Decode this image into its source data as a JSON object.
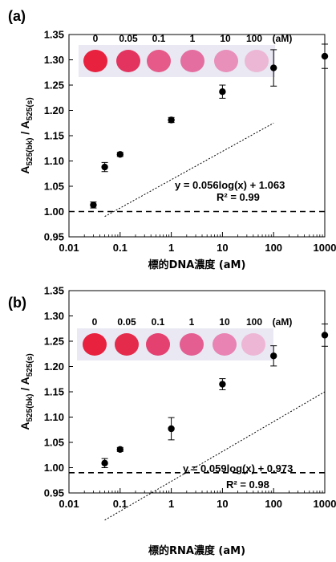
{
  "panels": [
    {
      "label": "(a)",
      "ylabel_main": "A",
      "ylabel_sub1": "525(bk)",
      "ylabel_sep": " / A",
      "ylabel_sub2": "525(s)",
      "xlabel": "標的DNA濃度 (aM)",
      "strip_labels": [
        "0",
        "0.05",
        "0.1",
        "1",
        "10",
        "100",
        "(aM)"
      ],
      "equation": "y = 0.056log(x) + 1.063",
      "r2": "R² = 0.99"
    },
    {
      "label": "(b)",
      "ylabel_main": "A",
      "ylabel_sub1": "525(bk)",
      "ylabel_sep": " / A",
      "ylabel_sub2": "525(s)",
      "xlabel": "標的RNA濃度 (aM)",
      "strip_labels": [
        "0",
        "0.05",
        "0.1",
        "1",
        "10",
        "100",
        "(aM)"
      ],
      "equation": "y = 0.059log(x) + 0.973",
      "r2": "R² = 0.98"
    }
  ],
  "chart_data": [
    {
      "type": "scatter",
      "xscale": "log",
      "xlim": [
        0.01,
        1000
      ],
      "ylim": [
        0.95,
        1.35
      ],
      "xticks": [
        0.01,
        0.1,
        1,
        10,
        100,
        1000
      ],
      "xtick_labels": [
        "0.01",
        "0.1",
        "1",
        "10",
        "100",
        "1000"
      ],
      "yticks": [
        0.95,
        1.0,
        1.05,
        1.1,
        1.15,
        1.2,
        1.25,
        1.3,
        1.35
      ],
      "ytick_labels": [
        "0.95",
        "1.00",
        "1.05",
        "1.10",
        "1.15",
        "1.20",
        "1.25",
        "1.30",
        "1.35"
      ],
      "points": [
        {
          "x": 0.03,
          "y": 1.013,
          "err": 0.006
        },
        {
          "x": 0.05,
          "y": 1.088,
          "err": 0.009
        },
        {
          "x": 0.1,
          "y": 1.113,
          "err": 0.004
        },
        {
          "x": 1,
          "y": 1.181,
          "err": 0.005
        },
        {
          "x": 10,
          "y": 1.237,
          "err": 0.013
        },
        {
          "x": 100,
          "y": 1.284,
          "err": 0.036
        },
        {
          "x": 1000,
          "y": 1.307,
          "err": 0.024
        }
      ],
      "fit": {
        "slope": 0.056,
        "intercept": 1.063,
        "x_range": [
          0.05,
          100
        ]
      },
      "baseline": 1.0,
      "strip_colors": [
        "#e8213f",
        "#e33460",
        "#e55a88",
        "#e46ea0",
        "#e88fba",
        "#ecb7d4"
      ]
    },
    {
      "type": "scatter",
      "xscale": "log",
      "xlim": [
        0.01,
        1000
      ],
      "ylim": [
        0.95,
        1.35
      ],
      "xticks": [
        0.01,
        0.1,
        1,
        10,
        100,
        1000
      ],
      "xtick_labels": [
        "0.01",
        "0.1",
        "1",
        "10",
        "100",
        "1000"
      ],
      "yticks": [
        0.95,
        1.0,
        1.05,
        1.1,
        1.15,
        1.2,
        1.25,
        1.3,
        1.35
      ],
      "ytick_labels": [
        "0.95",
        "1.00",
        "1.05",
        "1.10",
        "1.15",
        "1.20",
        "1.25",
        "1.30",
        "1.35"
      ],
      "points": [
        {
          "x": 0.05,
          "y": 1.009,
          "err": 0.009
        },
        {
          "x": 0.1,
          "y": 1.036,
          "err": 0.004
        },
        {
          "x": 1,
          "y": 1.077,
          "err": 0.022
        },
        {
          "x": 10,
          "y": 1.165,
          "err": 0.011
        },
        {
          "x": 100,
          "y": 1.221,
          "err": 0.02
        },
        {
          "x": 1000,
          "y": 1.262,
          "err": 0.022
        }
      ],
      "fit": {
        "slope": 0.059,
        "intercept": 0.973,
        "x_range": [
          0.05,
          1000
        ]
      },
      "baseline": 0.99,
      "strip_colors": [
        "#e8213f",
        "#e52b4c",
        "#e44070",
        "#e45e92",
        "#e883b3",
        "#eeb6d5"
      ]
    }
  ]
}
